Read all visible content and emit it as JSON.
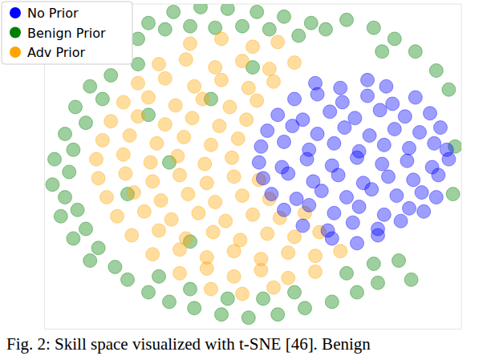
{
  "chart_data": {
    "type": "scatter",
    "caption": "Fig. 2: Skill space visualized with t-SNE [46]. Benign",
    "xlim": [
      -100,
      100
    ],
    "ylim": [
      -105,
      100
    ],
    "tick_labels": false,
    "grid": false,
    "legend": "upper left",
    "series": [
      {
        "name": "No Prior",
        "color": "#0000ff",
        "marker": "circle",
        "x": [
          30,
          42,
          55,
          64,
          20,
          31,
          43,
          55,
          67,
          78,
          12,
          24,
          37,
          49,
          61,
          73,
          85,
          7,
          19,
          31,
          44,
          56,
          68,
          80,
          90,
          4,
          15,
          27,
          39,
          51,
          63,
          75,
          87,
          93,
          3,
          14,
          26,
          38,
          50,
          62,
          74,
          86,
          94,
          5,
          17,
          29,
          41,
          53,
          65,
          77,
          89,
          9,
          21,
          33,
          45,
          57,
          69,
          81,
          88,
          15,
          27,
          39,
          51,
          63,
          75,
          82,
          24,
          36,
          48,
          60,
          71,
          38,
          50,
          60
        ],
        "values": [
          50,
          47,
          52,
          48,
          40,
          43,
          38,
          42,
          37,
          41,
          30,
          27,
          32,
          28,
          33,
          29,
          31,
          20,
          23,
          18,
          22,
          17,
          21,
          19,
          22,
          10,
          13,
          8,
          12,
          7,
          11,
          9,
          12,
          8,
          0,
          -3,
          2,
          -2,
          3,
          -1,
          1,
          -3,
          2,
          -10,
          -7,
          -12,
          -8,
          -13,
          -9,
          -11,
          -8,
          -20,
          -23,
          -18,
          -22,
          -17,
          -21,
          -19,
          -22,
          -30,
          -27,
          -32,
          -28,
          -33,
          -29,
          -31,
          -40,
          -43,
          -38,
          -42,
          -37,
          -48,
          -51,
          -46
        ]
      },
      {
        "name": "Benign Prior",
        "color": "#008000",
        "marker": "circle",
        "x": [
          -50,
          -38,
          -25,
          -12,
          2,
          15,
          28,
          -55,
          -42,
          -30,
          -18,
          -5,
          8,
          22,
          35,
          -55,
          -68,
          -78,
          -72,
          -85,
          -80,
          -90,
          -86,
          -95,
          -88,
          -96,
          -90,
          -84,
          -92,
          -80,
          -86,
          -74,
          -78,
          -66,
          -60,
          -50,
          -40,
          -28,
          -15,
          -2,
          12,
          25,
          38,
          50,
          60,
          -45,
          -30,
          -12,
          5,
          20,
          45,
          58,
          70,
          76,
          45,
          58,
          68,
          78,
          88,
          94,
          62,
          -50,
          -20,
          -60,
          -30,
          0,
          -40,
          97,
          96
        ],
        "values": [
          88,
          95,
          98,
          97,
          95,
          92,
          88,
          78,
          84,
          86,
          85,
          86,
          84,
          80,
          84,
          62,
          55,
          48,
          40,
          35,
          25,
          18,
          8,
          2,
          -6,
          -14,
          -22,
          -30,
          -34,
          -42,
          -48,
          -54,
          -62,
          -66,
          -74,
          -82,
          -88,
          -92,
          -96,
          -98,
          -96,
          -92,
          -88,
          -82,
          -76,
          -72,
          -80,
          -86,
          -86,
          -82,
          -70,
          -64,
          -62,
          -74,
          90,
          85,
          78,
          70,
          58,
          46,
          70,
          30,
          40,
          -20,
          -50,
          60,
          0,
          10,
          -20
        ]
      },
      {
        "name": "Adv Prior",
        "color": "#ffa500",
        "marker": "circle",
        "x": [
          -30,
          -15,
          0,
          12,
          -45,
          -32,
          -18,
          -5,
          8,
          20,
          -55,
          -42,
          -28,
          -15,
          -2,
          10,
          -62,
          -50,
          -37,
          -24,
          -11,
          2,
          -68,
          -55,
          -42,
          -29,
          -16,
          -3,
          -72,
          -59,
          -46,
          -33,
          -20,
          -7,
          -75,
          -62,
          -49,
          -36,
          -23,
          -10,
          -74,
          -61,
          -48,
          -35,
          -22,
          -9,
          3,
          -70,
          -57,
          -44,
          -31,
          -18,
          -5,
          8,
          -65,
          -52,
          -39,
          -26,
          -13,
          0,
          13,
          25,
          -58,
          -45,
          -32,
          -19,
          -6,
          7,
          20,
          32,
          -48,
          -35,
          -22,
          -9,
          4,
          17,
          30,
          42,
          -35,
          -22,
          -9,
          4,
          17,
          30,
          -20,
          -5,
          10
        ],
        "values": [
          75,
          78,
          73,
          76,
          62,
          65,
          60,
          64,
          59,
          63,
          50,
          53,
          48,
          52,
          47,
          51,
          38,
          41,
          36,
          40,
          35,
          39,
          26,
          29,
          24,
          28,
          23,
          27,
          14,
          17,
          12,
          16,
          11,
          15,
          2,
          5,
          0,
          4,
          -1,
          3,
          -10,
          -7,
          -12,
          -8,
          -13,
          -9,
          -11,
          -22,
          -19,
          -24,
          -20,
          -25,
          -21,
          -23,
          -34,
          -31,
          -36,
          -32,
          -37,
          -33,
          -35,
          -32,
          -46,
          -43,
          -48,
          -44,
          -49,
          -45,
          -47,
          -44,
          -58,
          -55,
          -60,
          -56,
          -61,
          -57,
          -59,
          -56,
          -70,
          -67,
          -72,
          -68,
          -73,
          -69,
          -80,
          -83,
          -79
        ]
      }
    ]
  }
}
